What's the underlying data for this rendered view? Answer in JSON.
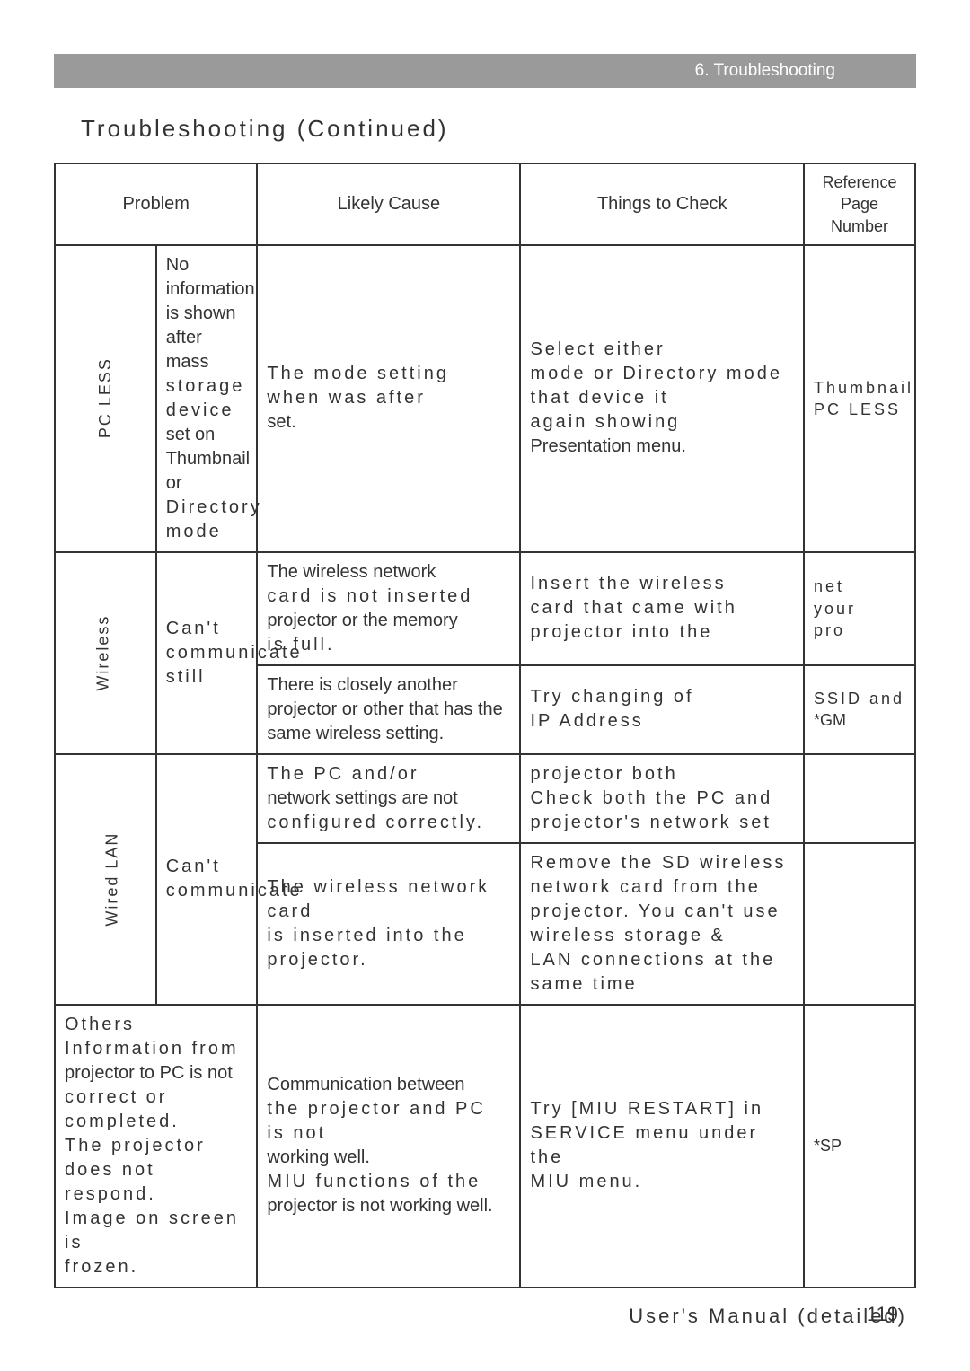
{
  "header": {
    "chapter": "6. Troubleshooting"
  },
  "title": "Troubleshooting (Continued)",
  "columns": {
    "problem": "Problem",
    "cause": "Likely Cause",
    "check": "Things to Check",
    "ref": "Reference Page Number"
  },
  "cats": {
    "pcless": "PC LESS",
    "wireless": "Wireless",
    "wired": "Wired LAN"
  },
  "rows": {
    "r1": {
      "problem_a": "No information is shown after mass",
      "problem_b": "storage device",
      "problem_c": "set on Thumbnail or",
      "problem_d": "Directory mode",
      "cause_a": "The mode setting",
      "cause_b": "when was after",
      "cause_c": "set.",
      "check_a": "Select either",
      "check_b": "mode or Directory mode",
      "check_c": "that device it",
      "check_d": "again showing",
      "check_e": "Presentation menu.",
      "ref_a": "Thumbnail",
      "ref_b": "PC LESS"
    },
    "r2": {
      "problem": "Can't communicate still",
      "cause_a": "The wireless network",
      "cause_b": "card is not inserted",
      "cause_c": "projector or the memory",
      "cause_d": "is full.",
      "check_a": "Insert the wireless",
      "check_b": "card that came with",
      "check_c": "projector into the",
      "ref_a": "net",
      "ref_b": "your",
      "ref_c": "pro"
    },
    "r3": {
      "cause_a": "There is closely another projector or other that has the same wireless setting.",
      "check_a": "Try changing of",
      "check_b": "IP Address",
      "ref_a": "SSID and",
      "ref_b": "*GM"
    },
    "r4": {
      "cause_a": "The PC and/or",
      "cause_b": "network settings are not",
      "cause_c": "configured correctly.",
      "check_a": "projector both",
      "check_b": "Check both the PC and",
      "check_c": "projector's network set"
    },
    "r5": {
      "problem": "Can't communicate",
      "cause_a": "The wireless network card",
      "cause_b": "is inserted into the projector.",
      "check_a": "Remove the SD wireless",
      "check_b": "network card from the",
      "check_c": "projector. You can't use",
      "check_d": "wireless storage &",
      "check_e": "LAN connections at the",
      "check_f": "same time"
    },
    "r6": {
      "cat": "Others",
      "problem_a": "Information from",
      "problem_b": "projector to PC is not",
      "problem_c": "correct or completed.",
      "problem_d": "The projector does not",
      "problem_e": "respond.",
      "problem_f": "Image on screen is",
      "problem_g": "frozen.",
      "cause_a": "Communication between",
      "cause_b": "the projector and PC is not",
      "cause_c": "working well.",
      "cause_d": "MIU functions of the",
      "cause_e": "projector is not working well.",
      "check_a": "Try [MIU RESTART] in",
      "check_b": "SERVICE menu under the",
      "check_c": "MIU menu.",
      "ref": "*SP"
    }
  },
  "footer": "User's Manual (detailed)",
  "page": "119",
  "colors": {
    "headerbar": "#9a9a9a",
    "text": "#333333",
    "bg": "#ffffff"
  }
}
